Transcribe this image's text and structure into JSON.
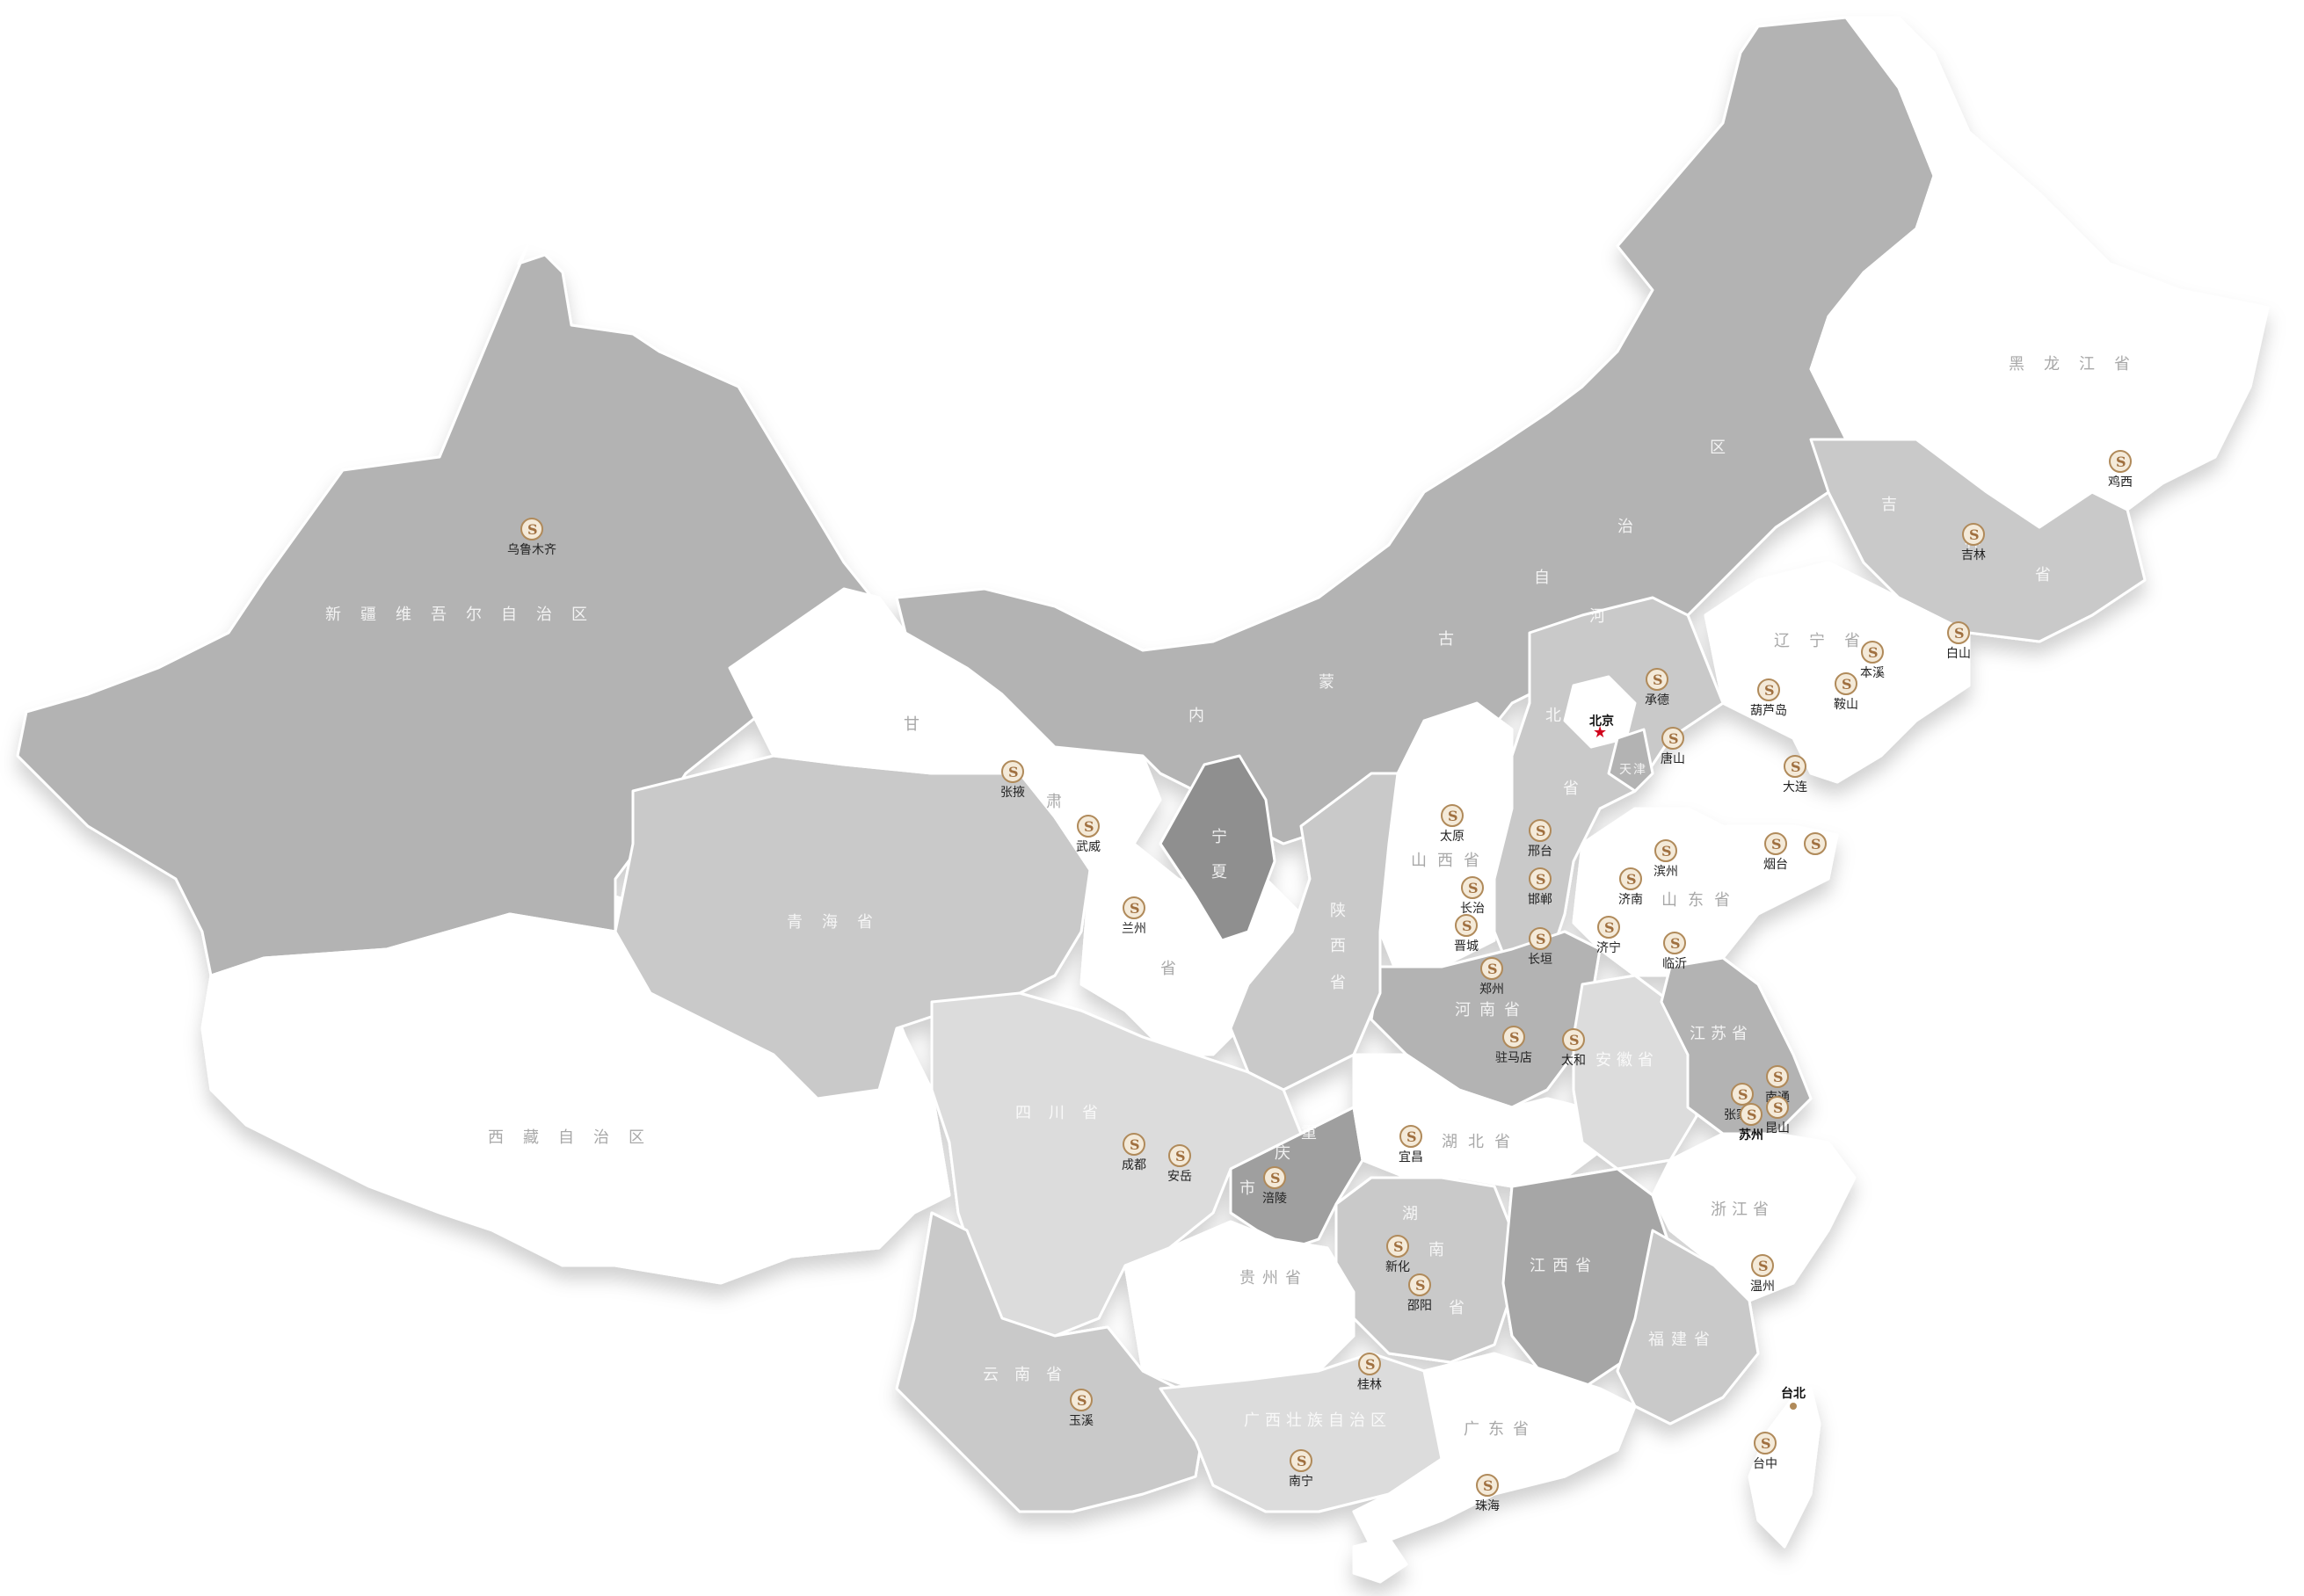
{
  "colors": {
    "dark": "#8f8f8f",
    "mid": "#b3b3b3",
    "light": "#c9c9c9",
    "lighter": "#dcdcdc",
    "white": "#ffffff",
    "capital_star": "#d0021b",
    "marker_gold": "#b08a5a"
  },
  "provinces": {
    "xinjiang": "新疆维吾尔自治区",
    "xizang": "西藏自治区",
    "qinghai": "青海省",
    "gansu_a": "甘",
    "gansu_b": "肃",
    "gansu_c": "省",
    "neimenggu_1": "内",
    "neimenggu_2": "蒙",
    "neimenggu_3": "古",
    "neimenggu_4": "自",
    "neimenggu_5": "治",
    "neimenggu_6": "区",
    "heilongjiang": "黑龙江省",
    "jilin_1": "吉",
    "jilin_2": "林",
    "jilin_3": "省",
    "liaoning": "辽宁省",
    "hebei_1": "河",
    "hebei_2": "北",
    "hebei_3": "省",
    "tianjin": "天津",
    "shanxi": "山西省",
    "shandong": "山东省",
    "henan": "河南省",
    "shaanxi_1": "陕",
    "shaanxi_2": "西",
    "shaanxi_3": "省",
    "ningxia_1": "宁",
    "ningxia_2": "夏",
    "sichuan": "四川省",
    "chongqing_1": "重",
    "chongqing_2": "庆",
    "chongqing_3": "市",
    "hubei": "湖北省",
    "anhui": "安徽省",
    "jiangsu": "江苏省",
    "zhejiang": "浙江省",
    "hunan_1": "湖",
    "hunan_2": "南",
    "hunan_3": "省",
    "jiangxi": "江西省",
    "fujian": "福建省",
    "guizhou": "贵州省",
    "yunnan": "云南省",
    "guangxi": "广西壮族自治区",
    "guangdong": "广东省"
  },
  "capital": {
    "name": "北京"
  },
  "cities": [
    {
      "id": "wulumuqi",
      "name": "乌鲁木齐"
    },
    {
      "id": "zhangye",
      "name": "张掖"
    },
    {
      "id": "wuwei",
      "name": "武威"
    },
    {
      "id": "lanzhou",
      "name": "兰州"
    },
    {
      "id": "jixi",
      "name": "鸡西"
    },
    {
      "id": "jilin",
      "name": "吉林"
    },
    {
      "id": "baishan",
      "name": "白山"
    },
    {
      "id": "benxi",
      "name": "本溪"
    },
    {
      "id": "anshan",
      "name": "鞍山"
    },
    {
      "id": "huludao",
      "name": "葫芦岛"
    },
    {
      "id": "dalian",
      "name": "大连"
    },
    {
      "id": "chengde",
      "name": "承德"
    },
    {
      "id": "tangshan",
      "name": "唐山"
    },
    {
      "id": "taiyuan",
      "name": "太原"
    },
    {
      "id": "xingtai",
      "name": "邢台"
    },
    {
      "id": "handan",
      "name": "邯郸"
    },
    {
      "id": "changzhi",
      "name": "长治"
    },
    {
      "id": "jincheng",
      "name": "晋城"
    },
    {
      "id": "changyuan",
      "name": "长垣"
    },
    {
      "id": "zhengzhou",
      "name": "郑州"
    },
    {
      "id": "binzhou",
      "name": "滨州"
    },
    {
      "id": "jinan",
      "name": "济南"
    },
    {
      "id": "jining",
      "name": "济宁"
    },
    {
      "id": "linyi",
      "name": "临沂"
    },
    {
      "id": "yantai",
      "name": "烟台"
    },
    {
      "id": "weihai",
      "name": ""
    },
    {
      "id": "zhumadian",
      "name": "驻马店"
    },
    {
      "id": "taihe",
      "name": "太和"
    },
    {
      "id": "zhangjiagang",
      "name": "张家港"
    },
    {
      "id": "suzhou",
      "name": "苏州"
    },
    {
      "id": "nantong",
      "name": "南通"
    },
    {
      "id": "kunshan",
      "name": "昆山"
    },
    {
      "id": "yichang",
      "name": "宜昌"
    },
    {
      "id": "chengdu",
      "name": "成都"
    },
    {
      "id": "anyue",
      "name": "安岳"
    },
    {
      "id": "fuling",
      "name": "涪陵"
    },
    {
      "id": "xinhua",
      "name": "新化"
    },
    {
      "id": "shaoyang",
      "name": "邵阳"
    },
    {
      "id": "wenzhou",
      "name": "温州"
    },
    {
      "id": "guilin",
      "name": "桂林"
    },
    {
      "id": "nanning",
      "name": "南宁"
    },
    {
      "id": "yuxi",
      "name": "玉溪"
    },
    {
      "id": "zhuhai",
      "name": "珠海"
    },
    {
      "id": "taibei",
      "name": "台北"
    },
    {
      "id": "taizhong",
      "name": "台中"
    }
  ]
}
